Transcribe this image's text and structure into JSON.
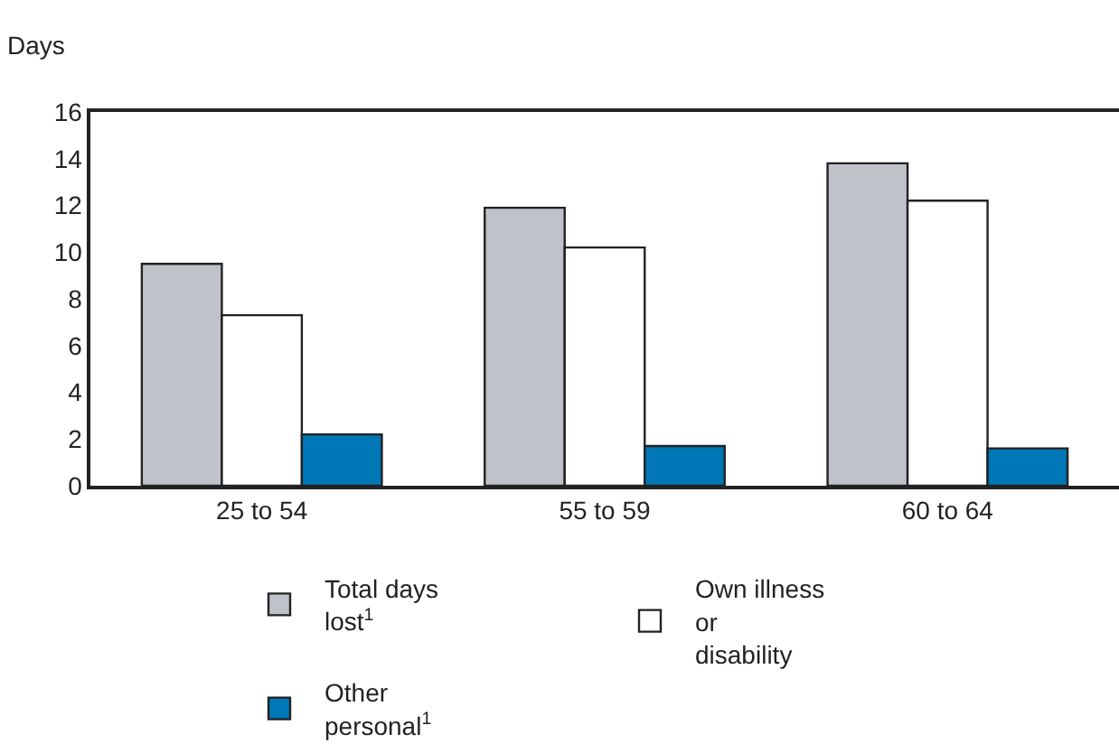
{
  "chart_data": {
    "type": "bar",
    "ylabel": "Days",
    "categories": [
      "25 to 54",
      "55 to 59",
      "60 to 64"
    ],
    "series": [
      {
        "name": "Total days lost$^{1}$",
        "color": "#bfc2c9",
        "values": [
          9.5,
          11.9,
          13.8
        ]
      },
      {
        "name": "Own illness or disability",
        "color": "#ffffff",
        "values": [
          7.3,
          10.2,
          12.2
        ]
      },
      {
        "name": "Other personal$^{1}$",
        "color": "#0077b6",
        "values": [
          2.2,
          1.7,
          1.6
        ]
      }
    ],
    "ylim": [
      0,
      16
    ],
    "yticks": [
      0,
      2,
      4,
      6,
      8,
      10,
      12,
      14,
      16
    ],
    "grid": false,
    "legend": "bottom"
  }
}
